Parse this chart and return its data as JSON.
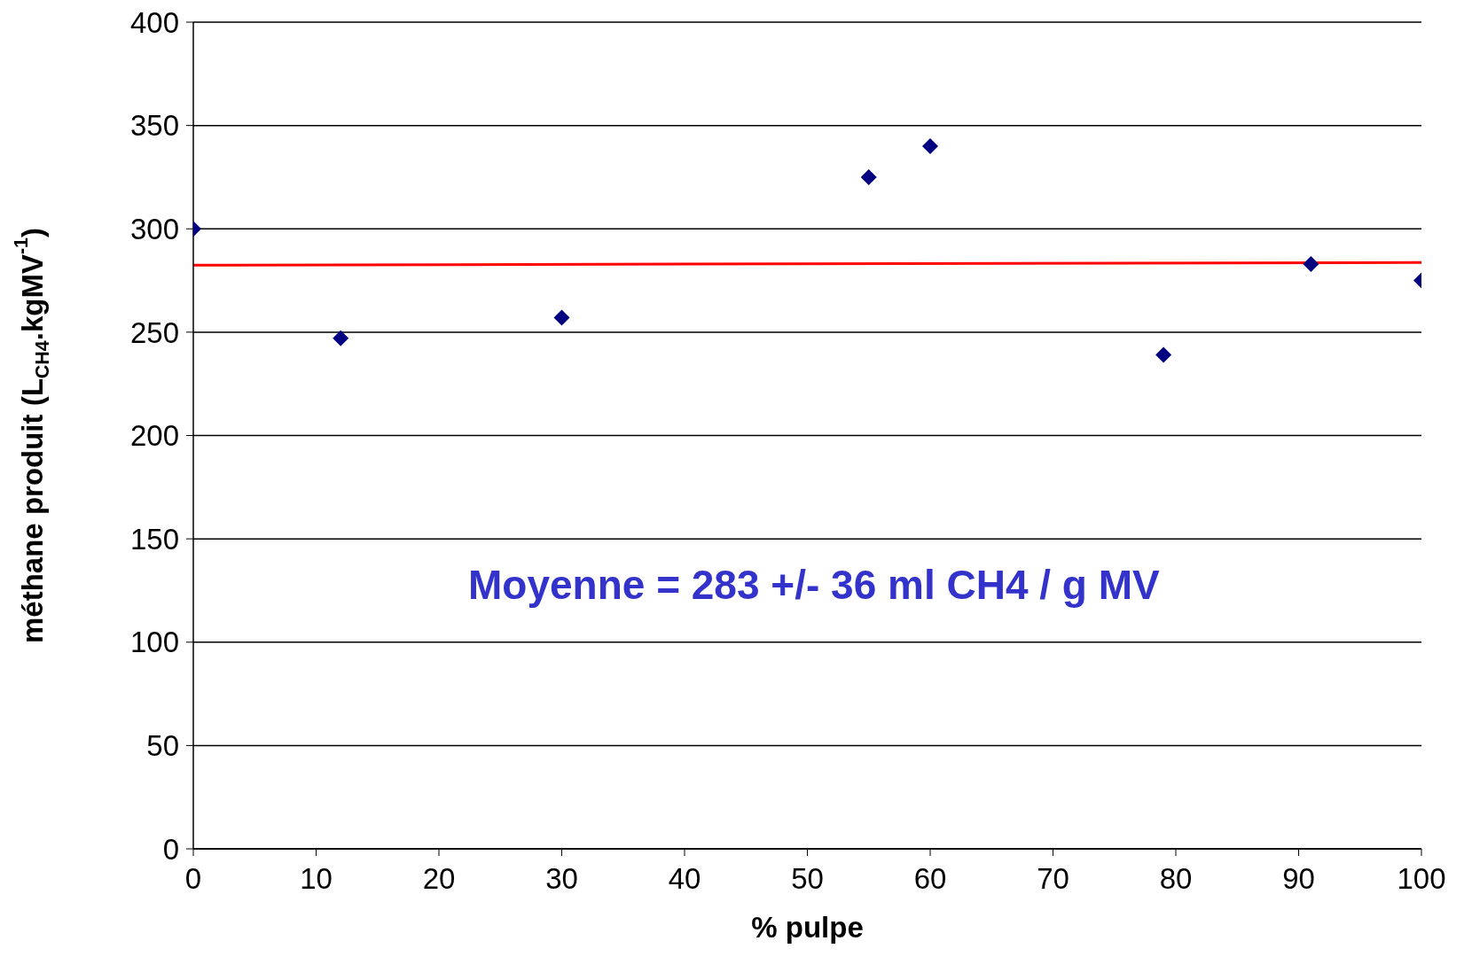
{
  "chart_data": {
    "type": "scatter",
    "xlabel": "% pulpe",
    "ylabel": "méthane produit (L$_{CH4}$.kgMV$^{-1}$)",
    "annotations": [
      "Moyenne = 283 +/- 36 ml CH4 / g MV"
    ],
    "x": [
      0,
      12,
      30,
      55,
      60,
      79,
      91,
      100
    ],
    "series": [
      {
        "color": "#000080",
        "values": [
          300,
          247,
          257,
          325,
          340,
          239,
          283,
          275
        ],
        "marker": "diamond"
      },
      {
        "type": "line",
        "x": [
          0,
          100
        ],
        "values": [
          282.4,
          283.7
        ],
        "color": "#ff0000",
        "marker": "none",
        "line_style": "solid"
      }
    ],
    "xlim": [
      0,
      100
    ],
    "xticks": [
      0,
      10,
      20,
      30,
      40,
      50,
      60,
      70,
      80,
      90,
      100
    ],
    "ylim": [
      0,
      400
    ],
    "yticks": [
      0,
      50,
      100,
      150,
      200,
      250,
      300,
      350,
      400
    ],
    "grid": "y"
  }
}
